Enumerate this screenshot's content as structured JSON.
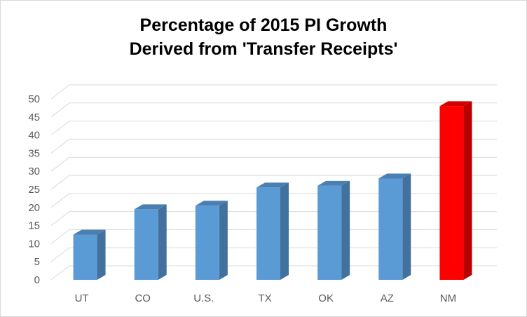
{
  "chart_data": {
    "type": "bar",
    "title_lines": [
      "Percentage of 2015 PI Growth",
      "Derived from 'Transfer Receipts'"
    ],
    "categories": [
      "UT",
      "CO",
      "U.S.",
      "TX",
      "OK",
      "AZ",
      "NM"
    ],
    "values": [
      12.5,
      19.5,
      20.5,
      25.5,
      26,
      28,
      48
    ],
    "highlight_category": "NM",
    "ylim": [
      0,
      50
    ],
    "y_ticks": [
      "0",
      "5",
      "10",
      "15",
      "20",
      "25",
      "30",
      "35",
      "40",
      "45",
      "50"
    ],
    "grid": true,
    "legend": "none",
    "colors": {
      "bar_front": "#5b9bd5",
      "bar_side": "#41719c",
      "bar_top": "#4a7fb1",
      "highlight_front": "#ff0000",
      "highlight_side": "#b80000",
      "highlight_top": "#d40000",
      "grid": "#d9d9d9"
    }
  }
}
